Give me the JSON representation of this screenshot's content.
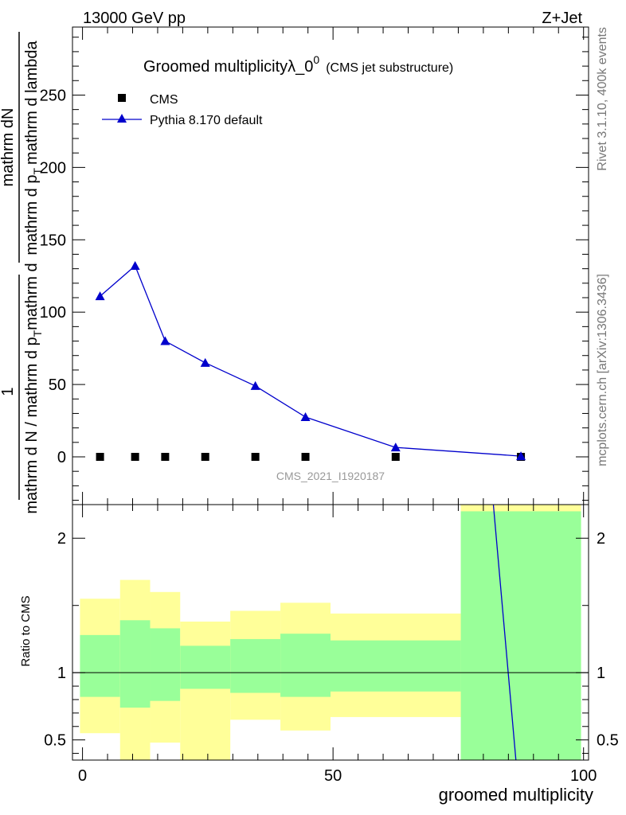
{
  "header": {
    "left": "13000 GeV pp",
    "right": "Z+Jet"
  },
  "side": {
    "rivet": "Rivet 3.1.10,  400k events",
    "mcplots": "mcplots.cern.ch [arXiv:1306.3436]"
  },
  "chart_data": {
    "type": "line",
    "title_main": "Groomed multiplicityλ_0",
    "title_sup": "0",
    "title_sub": "(CMS jet substructure)",
    "watermark": "CMS_2021_I1920187",
    "xlabel": "groomed multiplicity",
    "ylabel_num": "mathrm dN",
    "ylabel_den": "mathrm d N / mathrm d p",
    "ylabel_den2": "mathrm d p",
    "ylabel_den3": "mathrm d lambda",
    "ylabel_one": "1",
    "ylabel_t": "T",
    "ylabel_mid": "mathrm d",
    "ratio_ylabel": "Ratio to CMS",
    "xlim": [
      -2,
      101
    ],
    "ylim": [
      -33,
      297
    ],
    "ratio_ylim": [
      0.35,
      2.25
    ],
    "xticks": [
      0,
      50,
      100
    ],
    "yticks": [
      0,
      50,
      100,
      150,
      200,
      250
    ],
    "ratio_yticks": [
      0.5,
      1,
      2
    ],
    "xtick_labels": [
      "0",
      "50",
      "100"
    ],
    "ytick_labels": [
      "0",
      "50",
      "100",
      "150",
      "200",
      "250"
    ],
    "ratio_ytick_labels": [
      "0.5",
      "1",
      "2"
    ],
    "series": [
      {
        "name": "CMS",
        "marker": "square",
        "color": "#000000",
        "x": [
          3.5,
          10.5,
          16.5,
          24.5,
          34.5,
          44.5,
          62.5,
          87.5
        ],
        "y": [
          0,
          0,
          0,
          0,
          0,
          0,
          0,
          0
        ]
      },
      {
        "name": "Pythia 8.170 default",
        "marker": "triangle",
        "color": "#0000cc",
        "x": [
          3.5,
          10.5,
          16.5,
          24.5,
          34.5,
          44.5,
          62.5,
          87.5
        ],
        "y": [
          111,
          132,
          80,
          65,
          49,
          27.5,
          6.5,
          0.5
        ]
      }
    ],
    "ratio_bands": [
      {
        "x0": -0.5,
        "x1": 7.5,
        "g_lo": 0.82,
        "g_hi": 1.28,
        "y_lo": 0.55,
        "y_hi": 1.55
      },
      {
        "x0": 7.5,
        "x1": 13.5,
        "g_lo": 0.74,
        "g_hi": 1.39,
        "y_lo": 0.3,
        "y_hi": 1.69
      },
      {
        "x0": 13.5,
        "x1": 19.5,
        "g_lo": 0.79,
        "g_hi": 1.33,
        "y_lo": 0.48,
        "y_hi": 1.6
      },
      {
        "x0": 19.5,
        "x1": 29.5,
        "g_lo": 0.88,
        "g_hi": 1.2,
        "y_lo": 0.3,
        "y_hi": 1.38
      },
      {
        "x0": 29.5,
        "x1": 39.5,
        "g_lo": 0.85,
        "g_hi": 1.25,
        "y_lo": 0.65,
        "y_hi": 1.46
      },
      {
        "x0": 39.5,
        "x1": 49.5,
        "g_lo": 0.82,
        "g_hi": 1.29,
        "y_lo": 0.57,
        "y_hi": 1.52
      },
      {
        "x0": 49.5,
        "x1": 75.5,
        "g_lo": 0.86,
        "g_hi": 1.24,
        "y_lo": 0.67,
        "y_hi": 1.44
      },
      {
        "x0": 75.5,
        "x1": 99.5,
        "g_lo": 0.3,
        "g_hi": 2.2,
        "y_lo": 0.3,
        "y_hi": 2.5
      }
    ],
    "ratio_line": {
      "x": [
        82,
        86.5
      ],
      "y": [
        2.25,
        0.35
      ],
      "color": "#0000cc"
    },
    "colors": {
      "green": "#99ff99",
      "yellow": "#ffff99",
      "pythia": "#0000cc",
      "data": "#000000"
    }
  }
}
